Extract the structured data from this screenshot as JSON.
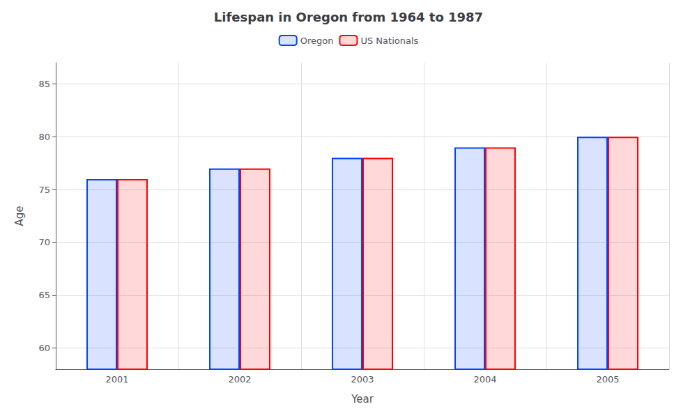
{
  "chart_data": {
    "type": "bar",
    "title": "Lifespan in Oregon from 1964 to 1987",
    "xlabel": "Year",
    "ylabel": "Age",
    "categories": [
      "2001",
      "2002",
      "2003",
      "2004",
      "2005"
    ],
    "series": [
      {
        "name": "Oregon",
        "color": "#0044ff",
        "values": [
          76,
          77,
          78,
          79,
          80
        ]
      },
      {
        "name": "US Nationals",
        "color": "#ff0000",
        "values": [
          76,
          77,
          78,
          79,
          80
        ]
      }
    ],
    "ylim": [
      58,
      87
    ],
    "yticks": [
      60,
      65,
      70,
      75,
      80,
      85
    ],
    "grid": true,
    "legend": "top"
  }
}
